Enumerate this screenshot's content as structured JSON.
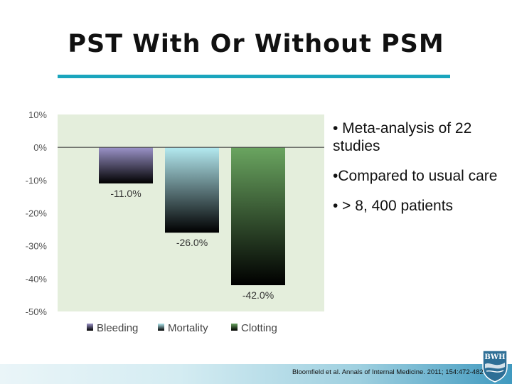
{
  "slide": {
    "title": "PST With Or Without PSM",
    "bullets": [
      "• Meta-analysis of 22 studies",
      "•Compared to usual care",
      "• > 8, 400 patients"
    ],
    "citation": "Bloomfield et al.  Annals of Internal Medicine. 2011; 154:472-482.",
    "logo": {
      "text": "BWH",
      "icon": "bwh-shield-logo-icon"
    }
  },
  "chart_data": {
    "type": "bar",
    "categories": [
      "Bleeding",
      "Mortality",
      "Clotting"
    ],
    "values": [
      -11.0,
      -26.0,
      -42.0
    ],
    "data_labels": [
      "-11.0%",
      "-26.0%",
      "-42.0%"
    ],
    "series": [
      {
        "name": "Bleeding",
        "color": "#9b93c9"
      },
      {
        "name": "Mortality",
        "color": "#b4eaf1"
      },
      {
        "name": "Clotting",
        "color": "#6aa560"
      }
    ],
    "ylim": [
      -50,
      10
    ],
    "yticks": [
      10,
      0,
      -10,
      -20,
      -30,
      -40,
      -50
    ],
    "ytick_labels": [
      "10%",
      "0%",
      "-10%",
      "-20%",
      "-30%",
      "-40%",
      "-50%"
    ],
    "plot_background": "#e4eedc",
    "grid": false,
    "legend": "bottom"
  }
}
